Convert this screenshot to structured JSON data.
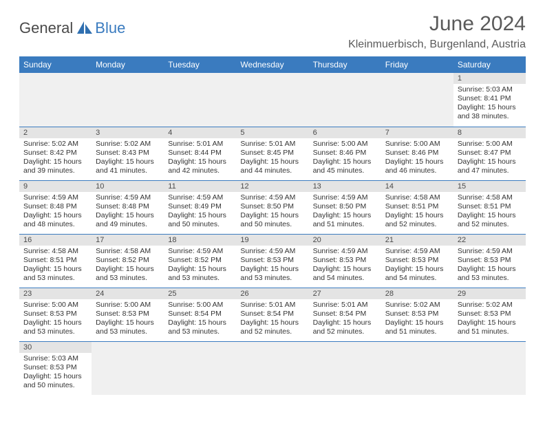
{
  "brand": {
    "part1": "General",
    "part2": "Blue"
  },
  "title": "June 2024",
  "location": "Kleinmuerbisch, Burgenland, Austria",
  "colors": {
    "header_bg": "#3a7bbf",
    "header_text": "#ffffff",
    "daynum_bg": "#e4e4e4",
    "border": "#3a7bbf",
    "empty_bg": "#f0f0f0",
    "text": "#333333",
    "title_text": "#5a5a5a"
  },
  "weekdays": [
    "Sunday",
    "Monday",
    "Tuesday",
    "Wednesday",
    "Thursday",
    "Friday",
    "Saturday"
  ],
  "first_weekday_index": 6,
  "days": [
    {
      "n": 1,
      "sunrise": "5:03 AM",
      "sunset": "8:41 PM",
      "daylight": "15 hours and 38 minutes."
    },
    {
      "n": 2,
      "sunrise": "5:02 AM",
      "sunset": "8:42 PM",
      "daylight": "15 hours and 39 minutes."
    },
    {
      "n": 3,
      "sunrise": "5:02 AM",
      "sunset": "8:43 PM",
      "daylight": "15 hours and 41 minutes."
    },
    {
      "n": 4,
      "sunrise": "5:01 AM",
      "sunset": "8:44 PM",
      "daylight": "15 hours and 42 minutes."
    },
    {
      "n": 5,
      "sunrise": "5:01 AM",
      "sunset": "8:45 PM",
      "daylight": "15 hours and 44 minutes."
    },
    {
      "n": 6,
      "sunrise": "5:00 AM",
      "sunset": "8:46 PM",
      "daylight": "15 hours and 45 minutes."
    },
    {
      "n": 7,
      "sunrise": "5:00 AM",
      "sunset": "8:46 PM",
      "daylight": "15 hours and 46 minutes."
    },
    {
      "n": 8,
      "sunrise": "5:00 AM",
      "sunset": "8:47 PM",
      "daylight": "15 hours and 47 minutes."
    },
    {
      "n": 9,
      "sunrise": "4:59 AM",
      "sunset": "8:48 PM",
      "daylight": "15 hours and 48 minutes."
    },
    {
      "n": 10,
      "sunrise": "4:59 AM",
      "sunset": "8:48 PM",
      "daylight": "15 hours and 49 minutes."
    },
    {
      "n": 11,
      "sunrise": "4:59 AM",
      "sunset": "8:49 PM",
      "daylight": "15 hours and 50 minutes."
    },
    {
      "n": 12,
      "sunrise": "4:59 AM",
      "sunset": "8:50 PM",
      "daylight": "15 hours and 50 minutes."
    },
    {
      "n": 13,
      "sunrise": "4:59 AM",
      "sunset": "8:50 PM",
      "daylight": "15 hours and 51 minutes."
    },
    {
      "n": 14,
      "sunrise": "4:58 AM",
      "sunset": "8:51 PM",
      "daylight": "15 hours and 52 minutes."
    },
    {
      "n": 15,
      "sunrise": "4:58 AM",
      "sunset": "8:51 PM",
      "daylight": "15 hours and 52 minutes."
    },
    {
      "n": 16,
      "sunrise": "4:58 AM",
      "sunset": "8:51 PM",
      "daylight": "15 hours and 53 minutes."
    },
    {
      "n": 17,
      "sunrise": "4:58 AM",
      "sunset": "8:52 PM",
      "daylight": "15 hours and 53 minutes."
    },
    {
      "n": 18,
      "sunrise": "4:59 AM",
      "sunset": "8:52 PM",
      "daylight": "15 hours and 53 minutes."
    },
    {
      "n": 19,
      "sunrise": "4:59 AM",
      "sunset": "8:53 PM",
      "daylight": "15 hours and 53 minutes."
    },
    {
      "n": 20,
      "sunrise": "4:59 AM",
      "sunset": "8:53 PM",
      "daylight": "15 hours and 54 minutes."
    },
    {
      "n": 21,
      "sunrise": "4:59 AM",
      "sunset": "8:53 PM",
      "daylight": "15 hours and 54 minutes."
    },
    {
      "n": 22,
      "sunrise": "4:59 AM",
      "sunset": "8:53 PM",
      "daylight": "15 hours and 53 minutes."
    },
    {
      "n": 23,
      "sunrise": "5:00 AM",
      "sunset": "8:53 PM",
      "daylight": "15 hours and 53 minutes."
    },
    {
      "n": 24,
      "sunrise": "5:00 AM",
      "sunset": "8:53 PM",
      "daylight": "15 hours and 53 minutes."
    },
    {
      "n": 25,
      "sunrise": "5:00 AM",
      "sunset": "8:54 PM",
      "daylight": "15 hours and 53 minutes."
    },
    {
      "n": 26,
      "sunrise": "5:01 AM",
      "sunset": "8:54 PM",
      "daylight": "15 hours and 52 minutes."
    },
    {
      "n": 27,
      "sunrise": "5:01 AM",
      "sunset": "8:54 PM",
      "daylight": "15 hours and 52 minutes."
    },
    {
      "n": 28,
      "sunrise": "5:02 AM",
      "sunset": "8:53 PM",
      "daylight": "15 hours and 51 minutes."
    },
    {
      "n": 29,
      "sunrise": "5:02 AM",
      "sunset": "8:53 PM",
      "daylight": "15 hours and 51 minutes."
    },
    {
      "n": 30,
      "sunrise": "5:03 AM",
      "sunset": "8:53 PM",
      "daylight": "15 hours and 50 minutes."
    }
  ],
  "labels": {
    "sunrise": "Sunrise:",
    "sunset": "Sunset:",
    "daylight": "Daylight:"
  }
}
